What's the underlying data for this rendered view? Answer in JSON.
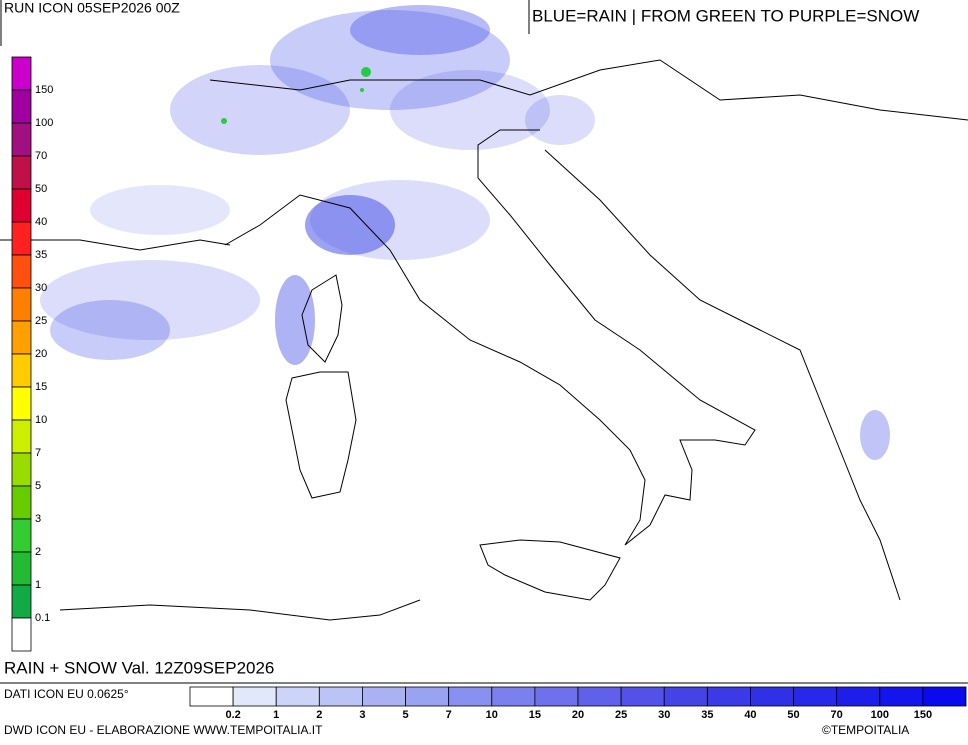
{
  "header": {
    "run": "RUN ICON 05SEP2026 00Z",
    "legend_note": "BLUE=RAIN | FROM GREEN TO PURPLE=SNOW"
  },
  "footer": {
    "title": "RAIN + SNOW Val. 12Z09SEP2026",
    "dati": "DATI ICON EU 0.0625°",
    "credit": "DWD ICON EU - ELABORAZIONE WWW.TEMPOITALIA.IT",
    "copyright": "©TEMPOITALIA"
  },
  "snow_scale": {
    "labels": [
      "150",
      "100",
      "70",
      "50",
      "40",
      "35",
      "30",
      "25",
      "20",
      "15",
      "10",
      "7",
      "5",
      "3",
      "2",
      "1",
      "0.1"
    ],
    "colors": [
      "#cc00cc",
      "#a000a0",
      "#a01080",
      "#c0104a",
      "#e00030",
      "#ff2020",
      "#ff5010",
      "#ff8000",
      "#ffa000",
      "#ffcc00",
      "#ffff00",
      "#ccee00",
      "#99dd00",
      "#66cc00",
      "#33cc33",
      "#22bb33",
      "#11aa44",
      "#ffffff"
    ]
  },
  "rain_scale": {
    "labels": [
      "0.2",
      "1",
      "2",
      "3",
      "5",
      "7",
      "10",
      "15",
      "20",
      "25",
      "30",
      "35",
      "40",
      "50",
      "70",
      "100",
      "150"
    ],
    "colors": [
      "#ffffff",
      "#e0e8fa",
      "#ccd4f8",
      "#bcc4f6",
      "#aab2f4",
      "#9aa2f2",
      "#8a90f0",
      "#7c80ee",
      "#6e70ec",
      "#6060ea",
      "#5252e8",
      "#4444e6",
      "#3a3ae6",
      "#3030e6",
      "#2828e8",
      "#1e1eea",
      "#1414ec",
      "#0a0aee"
    ]
  }
}
